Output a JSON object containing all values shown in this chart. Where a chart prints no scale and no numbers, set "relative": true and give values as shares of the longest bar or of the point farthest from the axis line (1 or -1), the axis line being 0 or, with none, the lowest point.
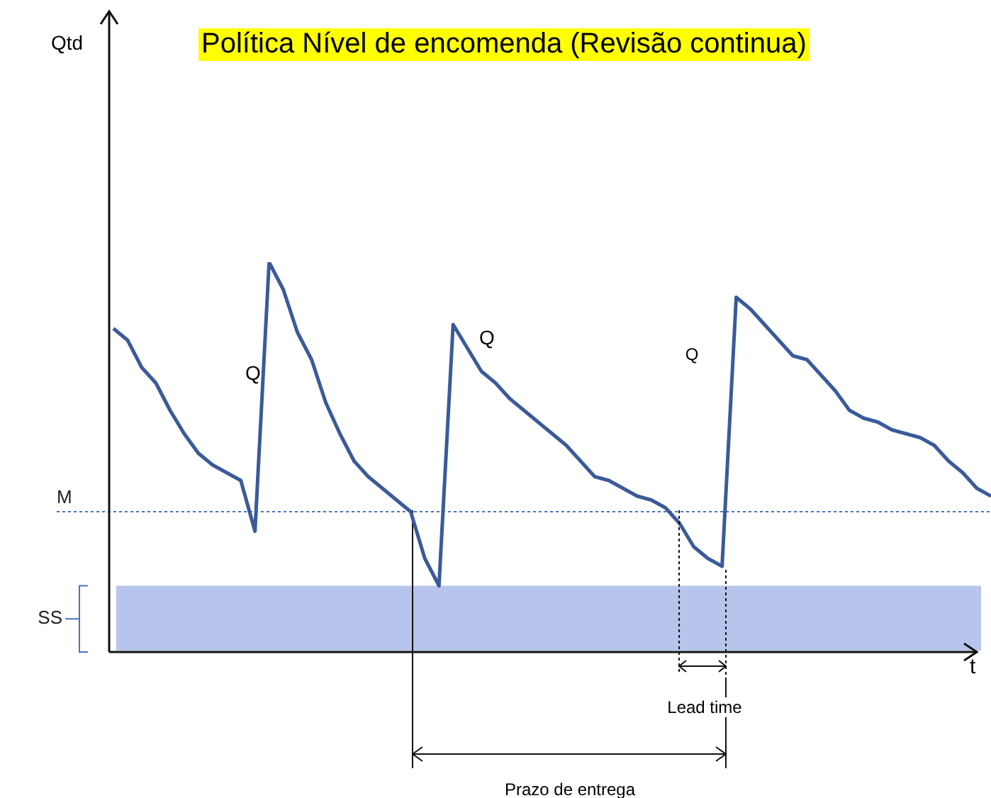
{
  "chart_data": {
    "type": "line",
    "title": "Política Nível de encomenda (Revisão continua)",
    "xlabel": "t",
    "relative": true,
    "categories": [
      null,
      null,
      null,
      null,
      null,
      null,
      null,
      null,
      null,
      null,
      null,
      null,
      null,
      null,
      null,
      null,
      null,
      null,
      null,
      null,
      null,
      null,
      null,
      null,
      null,
      null,
      null,
      null,
      null,
      null,
      null,
      null,
      null,
      null,
      null,
      null,
      null,
      null,
      null,
      null,
      null,
      null,
      null,
      null,
      null,
      null,
      null,
      null,
      null,
      null,
      null,
      null,
      null,
      null,
      null,
      null,
      null,
      null,
      null,
      null,
      null,
      null,
      null
    ],
    "series": [
      {
        "color": "#3a5a9a",
        "values": [
          0.83,
          0.8,
          0.73,
          0.69,
          0.62,
          0.56,
          0.51,
          0.48,
          0.46,
          0.44,
          0.31,
          1.0,
          0.93,
          0.82,
          0.75,
          0.64,
          0.56,
          0.49,
          0.45,
          0.42,
          0.39,
          0.36,
          0.24,
          0.17,
          0.84,
          0.78,
          0.72,
          0.69,
          0.65,
          0.62,
          0.59,
          0.56,
          0.53,
          0.49,
          0.45,
          0.44,
          0.42,
          0.4,
          0.39,
          0.37,
          0.33,
          0.27,
          0.24,
          0.22,
          0.91,
          0.88,
          0.84,
          0.8,
          0.76,
          0.75,
          0.71,
          0.67,
          0.62,
          0.6,
          0.59,
          0.57,
          0.56,
          0.55,
          0.53,
          0.49,
          0.46,
          0.42,
          0.4
        ]
      }
    ],
    "ref_lines": [
      {
        "axis": "y",
        "value": 0.36,
        "label": "M",
        "color": "#4a72c4",
        "line_style": "dotted"
      }
    ],
    "bands": [
      {
        "axis": "y",
        "from": 0,
        "to": 0.17,
        "label": "SS",
        "color": "#9fb1e6"
      }
    ],
    "annotations": [
      "Qtd",
      "Q",
      "Q",
      "Q",
      "Lead time",
      "Prazo de entrega"
    ],
    "legend": false,
    "marker": "none",
    "line_style": "solid"
  }
}
